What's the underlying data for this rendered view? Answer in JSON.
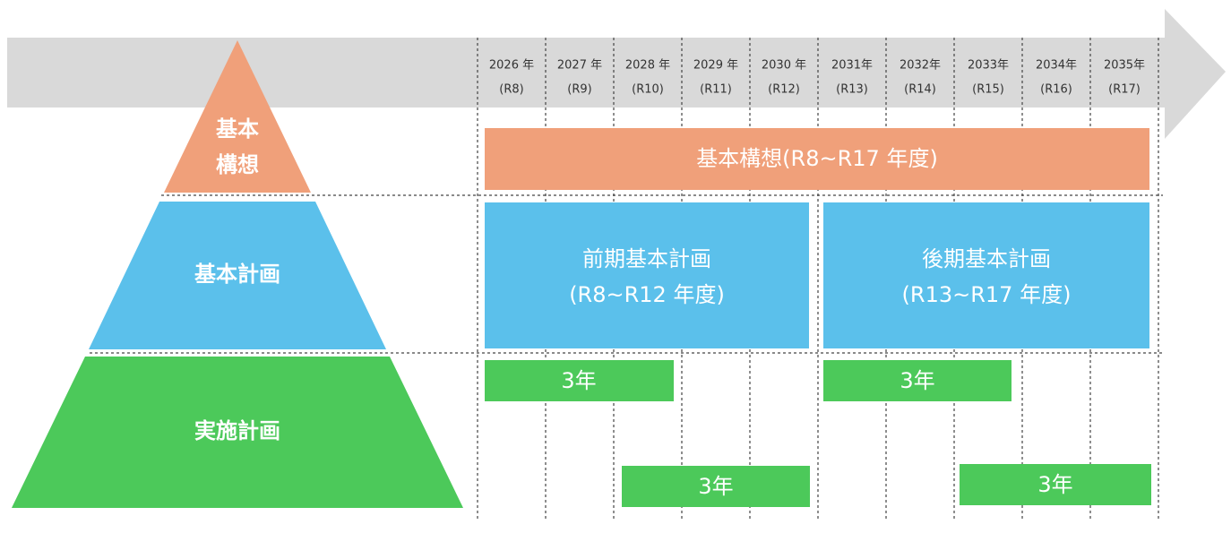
{
  "timeline": [
    {
      "year": "2026 年",
      "era": "(R8)"
    },
    {
      "year": "2027 年",
      "era": "(R9)"
    },
    {
      "year": "2028 年",
      "era": "(R10)"
    },
    {
      "year": "2029 年",
      "era": "(R11)"
    },
    {
      "year": "2030 年",
      "era": "(R12)"
    },
    {
      "year": "2031年",
      "era": "(R13)"
    },
    {
      "year": "2032年",
      "era": "(R14)"
    },
    {
      "year": "2033年",
      "era": "(R15)"
    },
    {
      "year": "2034年",
      "era": "(R16)"
    },
    {
      "year": "2035年",
      "era": "(R17)"
    }
  ],
  "pyramid": {
    "vision": [
      "基本",
      "構想"
    ],
    "basic_plan": "基本計画",
    "implementation_plan": "実施計画"
  },
  "bars": {
    "vision": "基本構想(R8~R17 年度)",
    "first_plan": [
      "前期基本計画",
      "(R8~R12 年度)"
    ],
    "second_plan": [
      "後期基本計画",
      "(R13~R17 年度)"
    ],
    "implementation": [
      "3年",
      "3年",
      "3年",
      "3年"
    ]
  }
}
